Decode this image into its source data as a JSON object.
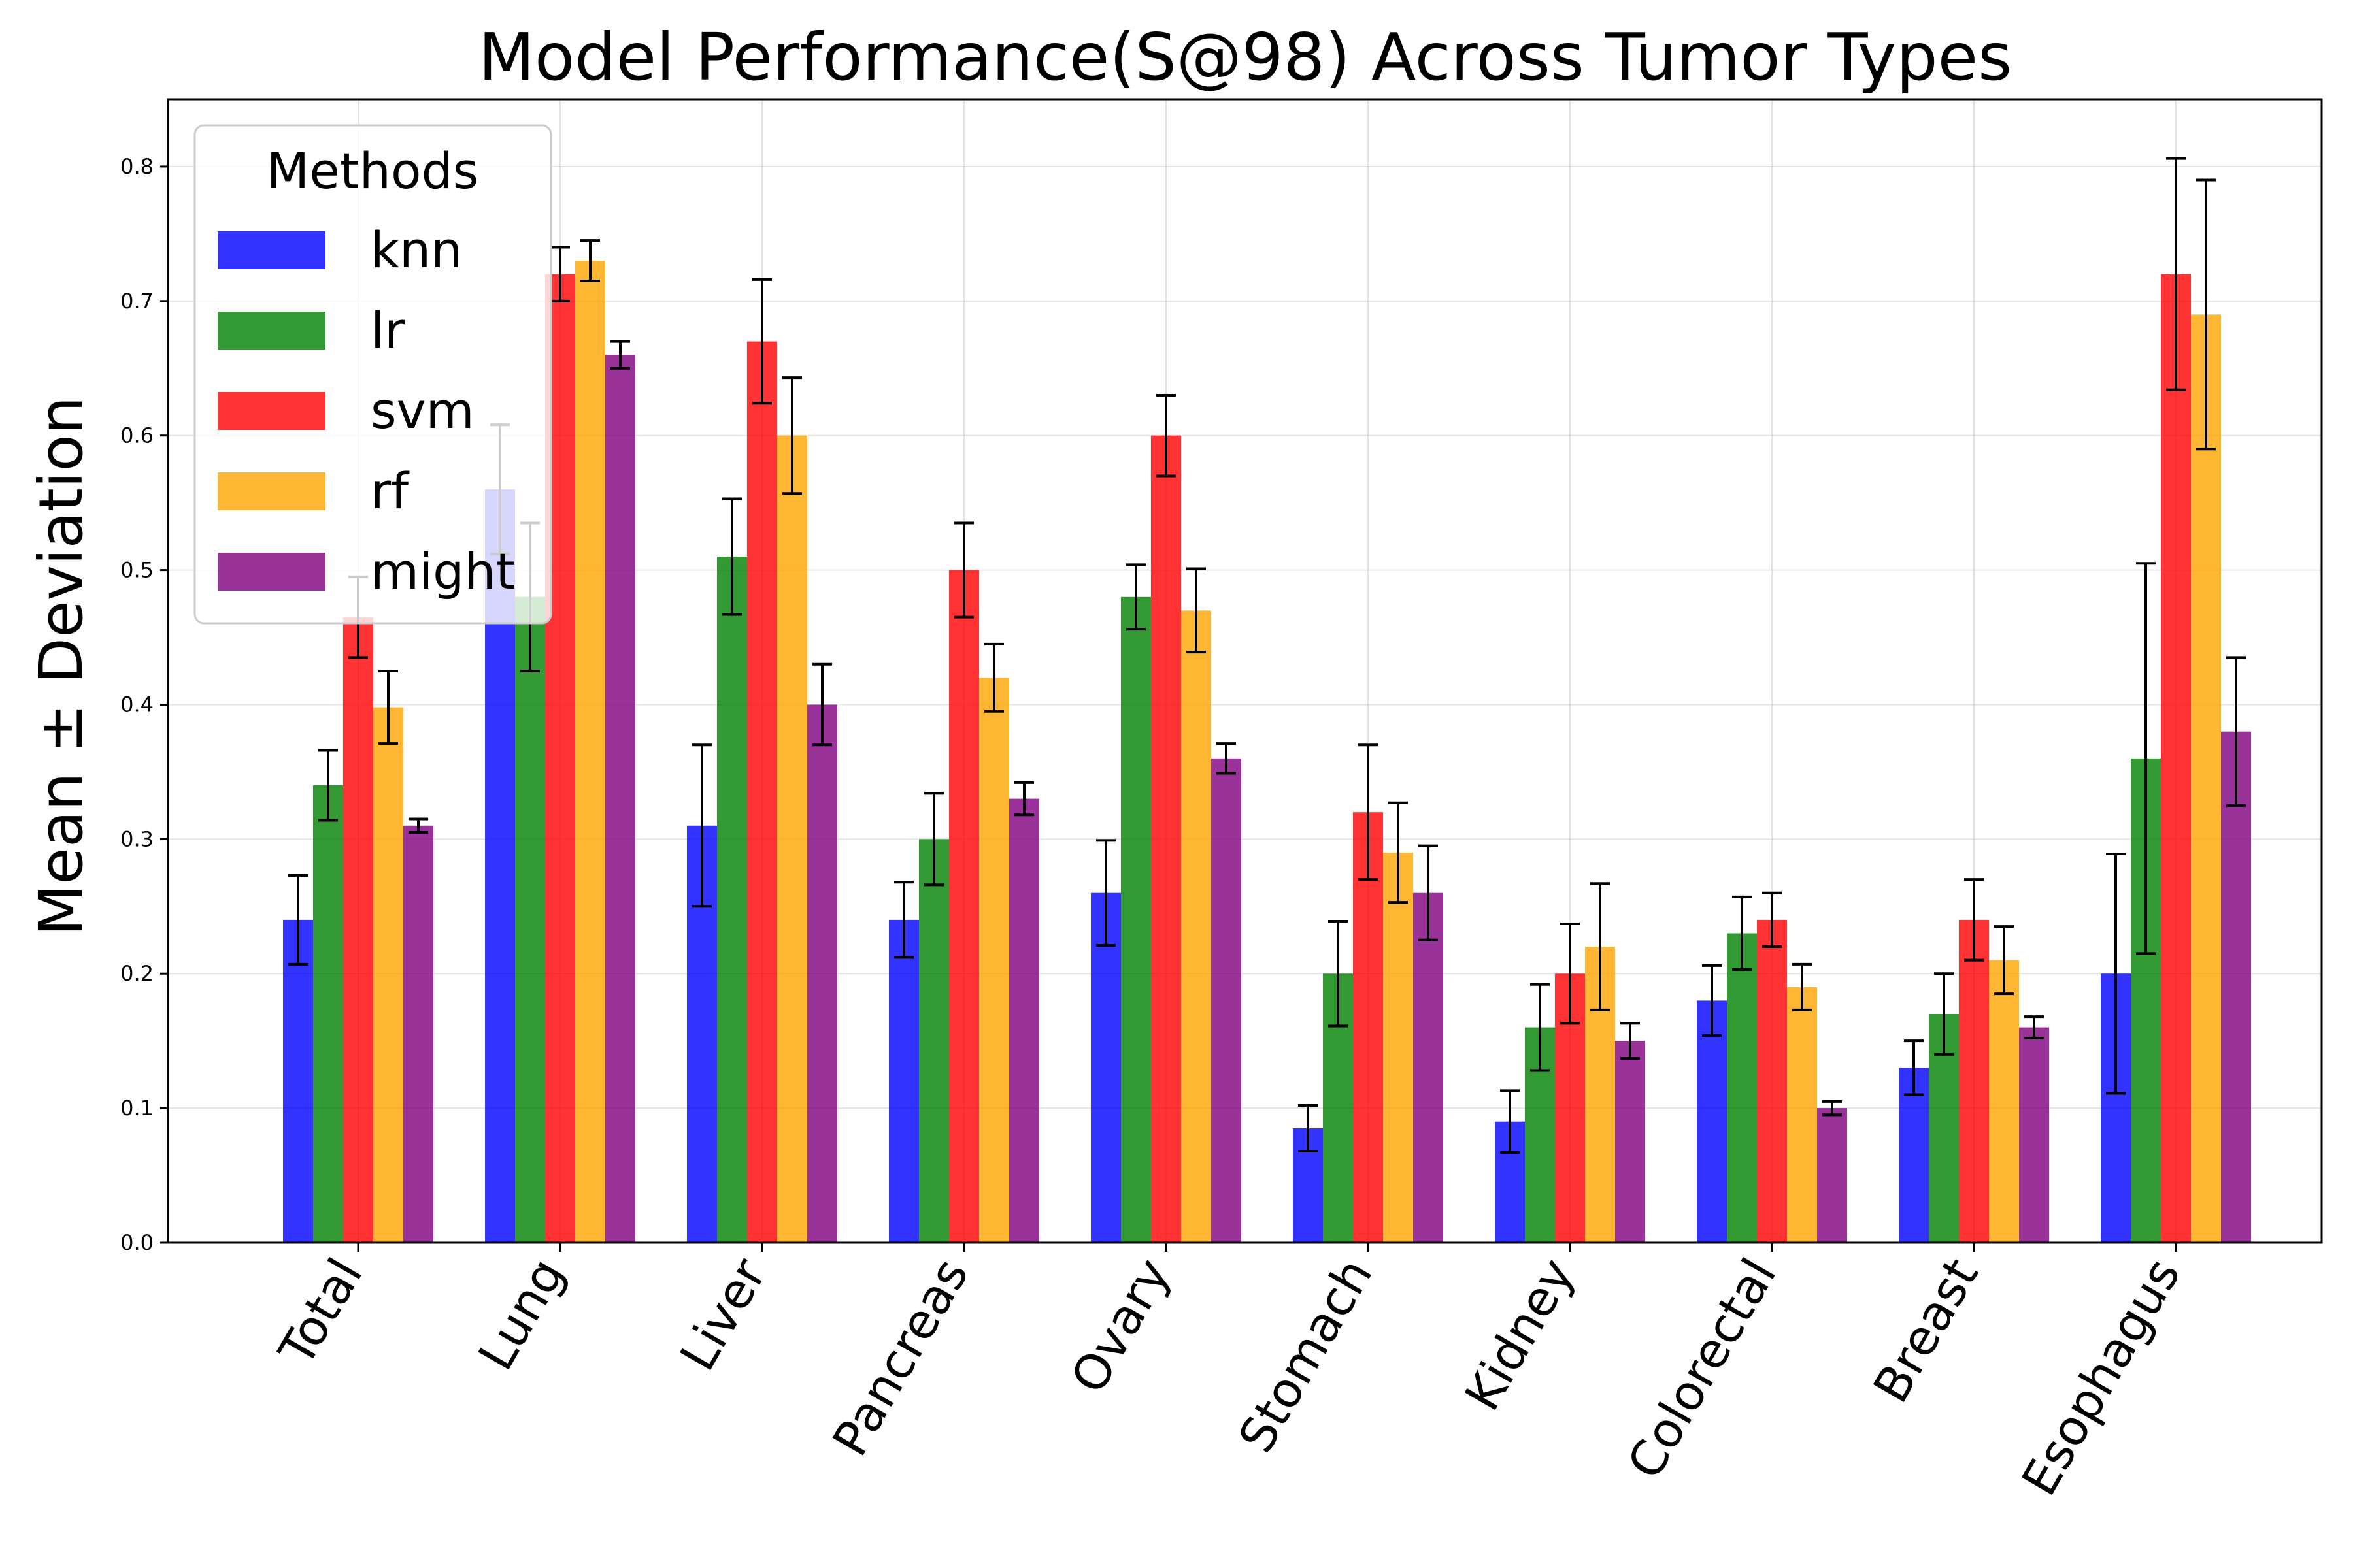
{
  "chart_data": {
    "type": "bar",
    "title": "Model Performance(S@98) Across Tumor Types",
    "xlabel": "",
    "ylabel": "Mean ± Deviation",
    "ylim": [
      0,
      0.85
    ],
    "yticks": [
      "0.0",
      "0.1",
      "0.2",
      "0.3",
      "0.4",
      "0.5",
      "0.6",
      "0.7",
      "0.8"
    ],
    "grid": true,
    "legend_title": "Methods",
    "legend_position": "top-left",
    "categories": [
      "Total",
      "Lung",
      "Liver",
      "Pancreas",
      "Ovary",
      "Stomach",
      "Kidney",
      "Colorectal",
      "Breast",
      "Esophagus"
    ],
    "series": [
      {
        "name": "knn",
        "color": "#0000ff",
        "values": [
          0.24,
          0.56,
          0.31,
          0.24,
          0.26,
          0.085,
          0.09,
          0.18,
          0.13,
          0.2
        ],
        "errors": [
          0.033,
          0.048,
          0.06,
          0.028,
          0.039,
          0.017,
          0.023,
          0.026,
          0.02,
          0.089
        ]
      },
      {
        "name": "lr",
        "color": "#008000",
        "values": [
          0.34,
          0.48,
          0.51,
          0.3,
          0.48,
          0.2,
          0.16,
          0.23,
          0.17,
          0.36
        ],
        "errors": [
          0.026,
          0.055,
          0.043,
          0.034,
          0.024,
          0.039,
          0.032,
          0.027,
          0.03,
          0.145
        ]
      },
      {
        "name": "svm",
        "color": "#ff0000",
        "values": [
          0.465,
          0.72,
          0.67,
          0.5,
          0.6,
          0.32,
          0.2,
          0.24,
          0.24,
          0.72
        ],
        "errors": [
          0.03,
          0.02,
          0.046,
          0.035,
          0.03,
          0.05,
          0.037,
          0.02,
          0.03,
          0.086
        ]
      },
      {
        "name": "rf",
        "color": "#ffa500",
        "values": [
          0.398,
          0.73,
          0.6,
          0.42,
          0.47,
          0.29,
          0.22,
          0.19,
          0.21,
          0.69
        ],
        "errors": [
          0.027,
          0.015,
          0.043,
          0.025,
          0.031,
          0.037,
          0.047,
          0.017,
          0.025,
          0.1
        ]
      },
      {
        "name": "might",
        "color": "#800080",
        "values": [
          0.31,
          0.66,
          0.4,
          0.33,
          0.36,
          0.26,
          0.15,
          0.1,
          0.16,
          0.38
        ],
        "errors": [
          0.005,
          0.01,
          0.03,
          0.012,
          0.011,
          0.035,
          0.013,
          0.005,
          0.008,
          0.055
        ]
      }
    ]
  }
}
